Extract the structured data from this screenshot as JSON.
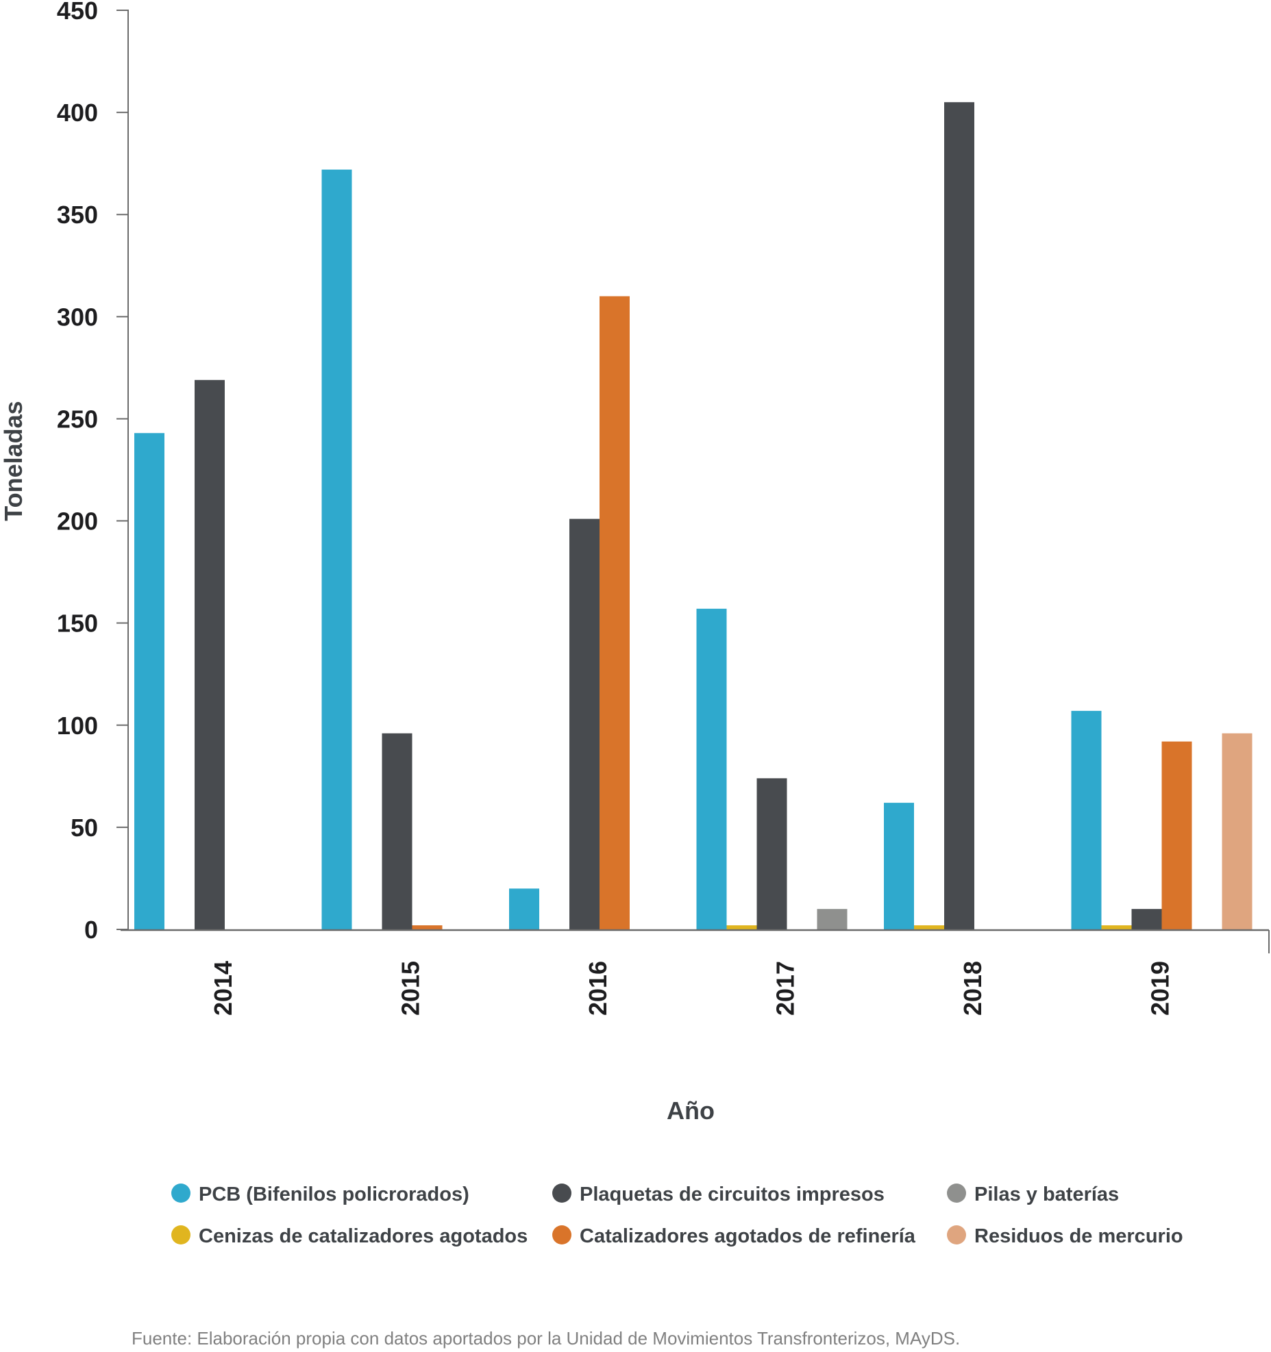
{
  "chart_data": {
    "type": "bar",
    "title": "",
    "xlabel": "Año",
    "ylabel": "Toneladas",
    "ylim": [
      0,
      450
    ],
    "yticks": [
      0,
      50,
      100,
      150,
      200,
      250,
      300,
      350,
      400,
      450
    ],
    "categories": [
      "2014",
      "2015",
      "2016",
      "2017",
      "2018",
      "2019"
    ],
    "grid": false,
    "legend_position": "bottom",
    "series": [
      {
        "name": "PCB (Bifenilos policrorados)",
        "color": "#2fa9cd",
        "slot": 0,
        "values": [
          243,
          372,
          20,
          157,
          62,
          107
        ]
      },
      {
        "name": "Cenizas de catalizadores agotados",
        "color": "#e0b51f",
        "slot": 1,
        "values": [
          0,
          0,
          0,
          2,
          2,
          2
        ]
      },
      {
        "name": "Plaquetas de circuitos impresos",
        "color": "#484b4f",
        "slot": 2,
        "values": [
          269,
          96,
          201,
          74,
          405,
          10
        ]
      },
      {
        "name": "Catalizadores agotados de refinería",
        "color": "#d9742a",
        "slot": 3,
        "values": [
          0,
          2,
          310,
          0,
          0,
          92
        ]
      },
      {
        "name": "Pilas y baterías",
        "color": "#8f908e",
        "slot": 4,
        "values": [
          0,
          0,
          0,
          10,
          0,
          0
        ]
      },
      {
        "name": "Residuos de mercurio",
        "color": "#dfa57f",
        "slot": 5,
        "values": [
          0,
          0,
          0,
          0,
          0,
          96
        ]
      }
    ],
    "legend_order": [
      0,
      2,
      4,
      1,
      3,
      5
    ],
    "source": "Fuente: Elaboración propia con datos aportados por la Unidad de Movimientos Transfronterizos, MAyDS."
  }
}
